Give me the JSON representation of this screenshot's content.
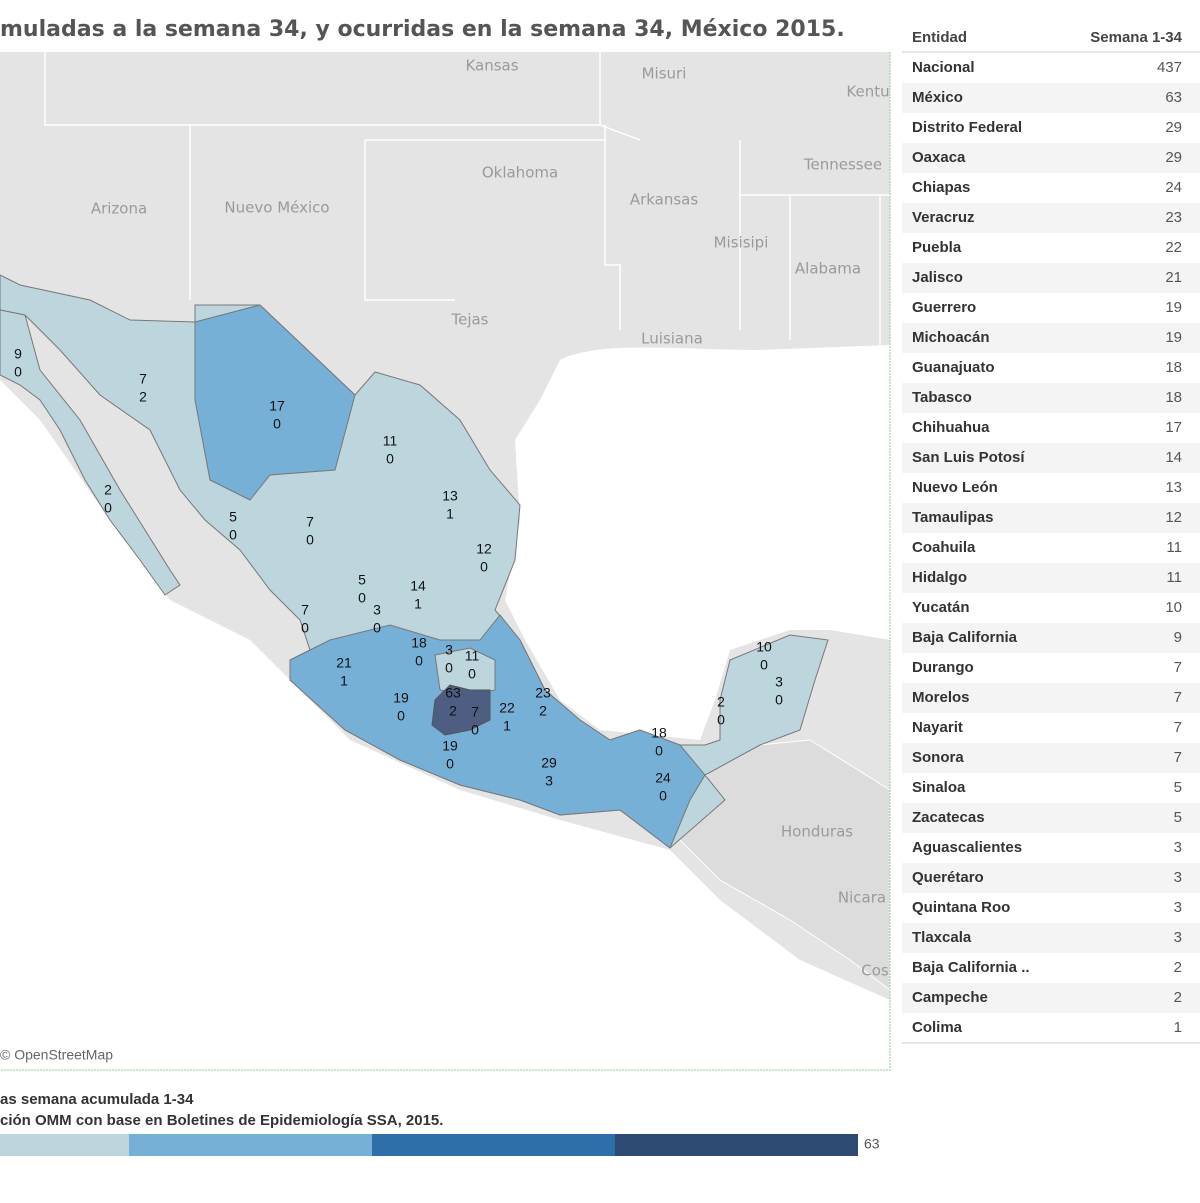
{
  "header": {
    "title": "muladas a la semana 34, y ocurridas en la semana 34, México 2015."
  },
  "map": {
    "place_labels": [
      "Kansas",
      "Misuri",
      "Kentu",
      "Oklahoma",
      "Tennessee",
      "Arizona",
      "Nuevo México",
      "Arkansas",
      "Misisipi",
      "Alabama",
      "Tejas",
      "Luisiana",
      "Honduras",
      "Nicara",
      "Cos"
    ],
    "attribution": "© OpenStreetMap",
    "markers": [
      [
        "9",
        "0"
      ],
      [
        "7",
        "2"
      ],
      [
        "17",
        "0"
      ],
      [
        "11",
        "0"
      ],
      [
        "2",
        "0"
      ],
      [
        "13",
        "1"
      ],
      [
        "5",
        "0"
      ],
      [
        "7",
        "0"
      ],
      [
        "12",
        "0"
      ],
      [
        "5",
        "0"
      ],
      [
        "14",
        "1"
      ],
      [
        "7",
        "0"
      ],
      [
        "3",
        "0"
      ],
      [
        "18",
        "0"
      ],
      [
        "3",
        "0"
      ],
      [
        "11",
        "0"
      ],
      [
        "21",
        "1"
      ],
      [
        "19",
        "0"
      ],
      [
        "63",
        "2"
      ],
      [
        "7",
        "0"
      ],
      [
        "22",
        "1"
      ],
      [
        "23",
        "2"
      ],
      [
        "19",
        "0"
      ],
      [
        "29",
        "3"
      ],
      [
        "18",
        "0"
      ],
      [
        "24",
        "0"
      ],
      [
        "2",
        "0"
      ],
      [
        "10",
        "0"
      ],
      [
        "3",
        "0"
      ]
    ]
  },
  "table": {
    "columns": [
      "Entidad",
      "Semana 1-34"
    ],
    "rows": [
      [
        "Nacional",
        "437"
      ],
      [
        "México",
        "63"
      ],
      [
        "Distrito Federal",
        "29"
      ],
      [
        "Oaxaca",
        "29"
      ],
      [
        "Chiapas",
        "24"
      ],
      [
        "Veracruz",
        "23"
      ],
      [
        "Puebla",
        "22"
      ],
      [
        "Jalisco",
        "21"
      ],
      [
        "Guerrero",
        "19"
      ],
      [
        "Michoacán",
        "19"
      ],
      [
        "Guanajuato",
        "18"
      ],
      [
        "Tabasco",
        "18"
      ],
      [
        "Chihuahua",
        "17"
      ],
      [
        "San Luis Potosí",
        "14"
      ],
      [
        "Nuevo León",
        "13"
      ],
      [
        "Tamaulipas",
        "12"
      ],
      [
        "Coahuila",
        "11"
      ],
      [
        "Hidalgo",
        "11"
      ],
      [
        "Yucatán",
        "10"
      ],
      [
        "Baja California",
        "9"
      ],
      [
        "Durango",
        "7"
      ],
      [
        "Morelos",
        "7"
      ],
      [
        "Nayarit",
        "7"
      ],
      [
        "Sonora",
        "7"
      ],
      [
        "Sinaloa",
        "5"
      ],
      [
        "Zacatecas",
        "5"
      ],
      [
        "Aguascalientes",
        "3"
      ],
      [
        "Querétaro",
        "3"
      ],
      [
        "Quintana Roo",
        "3"
      ],
      [
        "Tlaxcala",
        "3"
      ],
      [
        "Baja California ..",
        "2"
      ],
      [
        "Campeche",
        "2"
      ],
      [
        "Colima",
        "1"
      ]
    ]
  },
  "legend": {
    "title": "as semana acumulada 1-34",
    "source": "ción OMM con base en Boletines de Epidemiología SSA, 2015.",
    "max_label": "63"
  }
}
